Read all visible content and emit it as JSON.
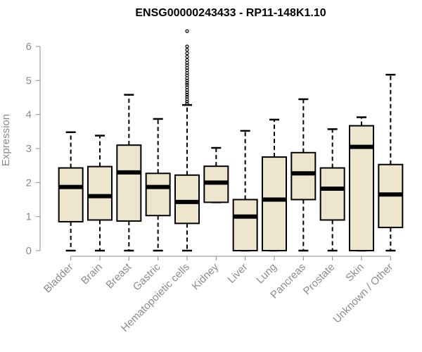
{
  "chart_data": {
    "type": "boxplot",
    "title": "ENSG00000243433 - RP11-148K1.10",
    "xlabel": "",
    "ylabel": "Expression",
    "ylim": [
      0,
      6
    ],
    "yticks": [
      0,
      1,
      2,
      3,
      4,
      5,
      6
    ],
    "grid": false,
    "legend": "none",
    "box_fill": "#ede6cc",
    "box_stroke": "#000000",
    "axis_color": "#8c8c8c",
    "categories": [
      "Bladder",
      "Brain",
      "Breast",
      "Gastric",
      "Hematopoietic cells",
      "Kidney",
      "Liver",
      "Lung",
      "Pancreas",
      "Prostate",
      "Skin",
      "Unknown / Other"
    ],
    "boxes": [
      {
        "min": 0,
        "q1": 0.85,
        "median": 1.87,
        "q3": 2.43,
        "max": 3.48
      },
      {
        "min": 0,
        "q1": 0.9,
        "median": 1.6,
        "q3": 2.47,
        "max": 3.38
      },
      {
        "min": 0,
        "q1": 0.87,
        "median": 2.3,
        "q3": 3.1,
        "max": 4.58
      },
      {
        "min": 0,
        "q1": 1.03,
        "median": 1.87,
        "q3": 2.27,
        "max": 3.87
      },
      {
        "min": 0,
        "q1": 0.8,
        "median": 1.43,
        "q3": 2.22,
        "max": 4.28
      },
      {
        "min": 1.42,
        "q1": 1.42,
        "median": 2.0,
        "q3": 2.48,
        "max": 3.02
      },
      {
        "min": 0,
        "q1": 0,
        "median": 1.0,
        "q3": 1.5,
        "max": 3.52
      },
      {
        "min": 0,
        "q1": 0,
        "median": 1.5,
        "q3": 2.75,
        "max": 3.85
      },
      {
        "min": 0,
        "q1": 1.5,
        "median": 2.27,
        "q3": 2.88,
        "max": 4.45
      },
      {
        "min": 0,
        "q1": 0.9,
        "median": 1.82,
        "q3": 2.43,
        "max": 3.57
      },
      {
        "min": 0,
        "q1": 0,
        "median": 3.05,
        "q3": 3.67,
        "max": 3.92
      },
      {
        "min": 0,
        "q1": 0.68,
        "median": 1.65,
        "q3": 2.53,
        "max": 5.17
      }
    ],
    "outliers": [
      {
        "category": "Hematopoietic cells",
        "values": [
          4.32,
          4.38,
          4.45,
          4.52,
          4.58,
          4.65,
          4.72,
          4.8,
          4.87,
          4.93,
          5.0,
          5.07,
          5.15,
          5.22,
          5.3,
          5.37,
          5.45,
          5.52,
          5.6,
          5.7,
          5.8,
          5.9,
          6.0,
          6.45
        ]
      }
    ]
  }
}
